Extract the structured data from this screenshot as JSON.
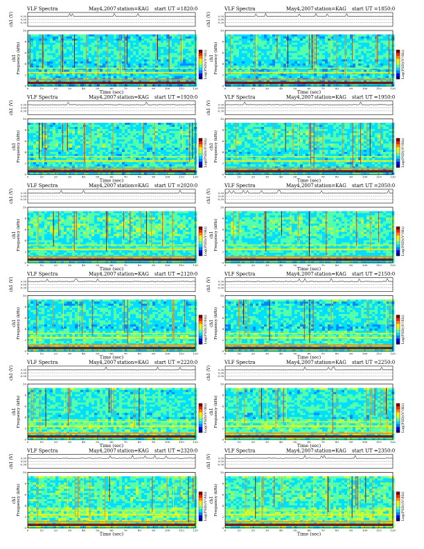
{
  "header": {
    "title": "VLF Spectra",
    "date": "May4,2007",
    "station": "station=KAG",
    "start_prefix": "start  UT  ="
  },
  "labels": {
    "time_axis": "Time (sec)",
    "freq_axis": "Frequency (kHz)",
    "channel": "ch1",
    "volt_axis": "ch1 (V)",
    "colorbar": "Log(PSD)(V²/Hz)"
  },
  "chart_data": {
    "type": "heatmap",
    "x_ticks": [
      0,
      10,
      20,
      30,
      40,
      50,
      60,
      70,
      80,
      90,
      100,
      110,
      120
    ],
    "y_ticks": [
      0,
      2,
      4,
      6,
      8,
      10
    ],
    "volt_ticks": [
      "0.30",
      "0.00",
      "-0.30"
    ],
    "xlim": [
      0,
      120
    ],
    "ylim": [
      0,
      10
    ],
    "colorscale": [
      "#00007a",
      "#0000ff",
      "#0088ff",
      "#00ddff",
      "#55ffaa",
      "#c8ff33",
      "#ffee00",
      "#ff8800",
      "#ff2200",
      "#7a0000"
    ],
    "panels": [
      {
        "start_ut": "1820:0"
      },
      {
        "start_ut": "1850:0"
      },
      {
        "start_ut": "1920:0"
      },
      {
        "start_ut": "1950:0"
      },
      {
        "start_ut": "2020:0"
      },
      {
        "start_ut": "2050:0"
      },
      {
        "start_ut": "2120:0"
      },
      {
        "start_ut": "2150:0"
      },
      {
        "start_ut": "2220:0"
      },
      {
        "start_ut": "2250:0"
      },
      {
        "start_ut": "2320:0"
      },
      {
        "start_ut": "2350:0"
      }
    ]
  }
}
